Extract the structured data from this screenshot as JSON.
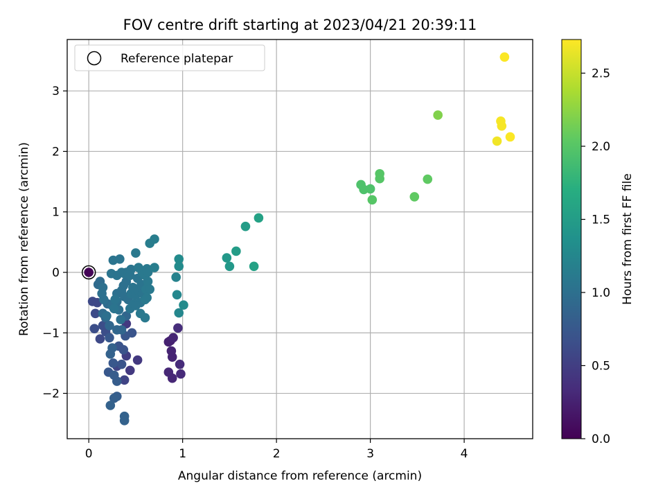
{
  "chart_data": {
    "type": "scatter",
    "title": "FOV centre drift starting at 2023/04/21 20:39:11",
    "xlabel": "Angular distance from reference (arcmin)",
    "ylabel": "Rotation from reference (arcmin)",
    "xlim": [
      -0.23,
      4.73
    ],
    "ylim": [
      -2.75,
      3.85
    ],
    "xticks": [
      0,
      1,
      2,
      3,
      4
    ],
    "yticks": [
      -2,
      -1,
      0,
      1,
      2,
      3
    ],
    "xtick_labels": [
      "0",
      "1",
      "2",
      "3",
      "4"
    ],
    "ytick_labels": [
      "−2",
      "−1",
      "0",
      "1",
      "2",
      "3"
    ],
    "grid": true,
    "legend": {
      "position": "top-left",
      "entries": [
        "Reference platepar"
      ]
    },
    "reference_point": {
      "x": 0,
      "y": 0
    },
    "colorbar": {
      "label": "Hours from first FF file",
      "min": 0.0,
      "max": 2.73,
      "ticks": [
        0.0,
        0.5,
        1.0,
        1.5,
        2.0,
        2.5
      ],
      "tick_labels": [
        "0.0",
        "0.5",
        "1.0",
        "1.5",
        "2.0",
        "2.5"
      ],
      "colormap": "viridis"
    },
    "points": [
      [
        0.0,
        0.0,
        0.02
      ],
      [
        0.87,
        -1.13,
        0.25
      ],
      [
        0.85,
        -1.15,
        0.25
      ],
      [
        0.88,
        -1.3,
        0.27
      ],
      [
        0.89,
        -1.4,
        0.27
      ],
      [
        0.9,
        -1.08,
        0.28
      ],
      [
        0.85,
        -1.65,
        0.3
      ],
      [
        0.89,
        -1.75,
        0.3
      ],
      [
        0.98,
        -1.68,
        0.32
      ],
      [
        0.97,
        -1.52,
        0.33
      ],
      [
        0.95,
        -0.92,
        0.35
      ],
      [
        0.4,
        -0.85,
        0.45
      ],
      [
        0.44,
        -1.62,
        0.45
      ],
      [
        0.52,
        -1.45,
        0.45
      ],
      [
        0.4,
        -1.38,
        0.5
      ],
      [
        0.3,
        -1.55,
        0.55
      ],
      [
        0.38,
        -1.78,
        0.55
      ],
      [
        0.12,
        -1.1,
        0.6
      ],
      [
        0.04,
        -0.48,
        0.6
      ],
      [
        0.09,
        -0.5,
        0.6
      ],
      [
        0.07,
        -0.68,
        0.62
      ],
      [
        0.18,
        -0.98,
        0.65
      ],
      [
        0.15,
        -0.88,
        0.65
      ],
      [
        0.06,
        -0.93,
        0.65
      ],
      [
        0.35,
        -1.52,
        0.7
      ],
      [
        0.32,
        -1.22,
        0.7
      ],
      [
        0.37,
        -1.28,
        0.7
      ],
      [
        0.46,
        -1.0,
        0.7
      ],
      [
        0.39,
        -1.05,
        0.72
      ],
      [
        0.26,
        -1.5,
        0.75
      ],
      [
        0.22,
        -1.08,
        0.75
      ],
      [
        0.21,
        -1.65,
        0.75
      ],
      [
        0.27,
        -1.7,
        0.8
      ],
      [
        0.3,
        -1.8,
        0.8
      ],
      [
        0.3,
        -2.05,
        0.8
      ],
      [
        0.27,
        -2.08,
        0.82
      ],
      [
        0.23,
        -2.2,
        0.85
      ],
      [
        0.38,
        -2.38,
        0.85
      ],
      [
        0.38,
        -2.45,
        0.85
      ],
      [
        0.23,
        -1.35,
        0.85
      ],
      [
        0.25,
        -1.25,
        0.85
      ],
      [
        0.3,
        -0.95,
        0.9
      ],
      [
        0.35,
        -0.95,
        0.9
      ],
      [
        0.4,
        -0.72,
        0.9
      ],
      [
        0.22,
        -0.88,
        0.9
      ],
      [
        0.18,
        -0.75,
        0.9
      ],
      [
        0.15,
        -0.68,
        0.95
      ],
      [
        0.2,
        -0.52,
        0.95
      ],
      [
        0.1,
        -0.2,
        0.95
      ],
      [
        0.12,
        -0.15,
        0.95
      ],
      [
        0.15,
        -0.25,
        1.0
      ],
      [
        0.14,
        -0.35,
        1.0
      ],
      [
        0.16,
        -0.45,
        1.0
      ],
      [
        0.25,
        -0.55,
        1.0
      ],
      [
        0.3,
        -0.48,
        1.0
      ],
      [
        0.3,
        -0.35,
        1.0
      ],
      [
        0.32,
        -0.62,
        1.0
      ],
      [
        0.35,
        -0.3,
        1.0
      ],
      [
        0.37,
        -0.22,
        1.0
      ],
      [
        0.38,
        -0.4,
        1.0
      ],
      [
        0.4,
        -0.15,
        1.0
      ],
      [
        0.42,
        -0.45,
        1.0
      ],
      [
        0.44,
        -0.6,
        1.05
      ],
      [
        0.45,
        -0.35,
        1.05
      ],
      [
        0.47,
        -0.25,
        1.05
      ],
      [
        0.48,
        -0.52,
        1.05
      ],
      [
        0.5,
        -0.38,
        1.05
      ],
      [
        0.52,
        -0.1,
        1.05
      ],
      [
        0.53,
        -0.3,
        1.05
      ],
      [
        0.55,
        -0.5,
        1.05
      ],
      [
        0.56,
        -0.2,
        1.05
      ],
      [
        0.57,
        -0.35,
        1.05
      ],
      [
        0.6,
        -0.45,
        1.1
      ],
      [
        0.61,
        -0.28,
        1.1
      ],
      [
        0.63,
        -0.15,
        1.1
      ],
      [
        0.65,
        -0.28,
        1.1
      ],
      [
        0.6,
        -0.05,
        1.1
      ],
      [
        0.57,
        0.0,
        1.1
      ],
      [
        0.55,
        -0.68,
        1.1
      ],
      [
        0.6,
        -0.75,
        1.1
      ],
      [
        0.62,
        -0.42,
        1.1
      ],
      [
        0.24,
        -0.02,
        1.05
      ],
      [
        0.3,
        -0.05,
        1.05
      ],
      [
        0.35,
        0.0,
        1.05
      ],
      [
        0.38,
        -0.02,
        1.05
      ],
      [
        0.4,
        0.0,
        1.05
      ],
      [
        0.42,
        -0.02,
        1.05
      ],
      [
        0.44,
        -0.05,
        1.05
      ],
      [
        0.45,
        0.05,
        1.05
      ],
      [
        0.33,
        0.22,
        1.05
      ],
      [
        0.26,
        0.2,
        1.05
      ],
      [
        0.5,
        0.32,
        1.1
      ],
      [
        0.53,
        0.08,
        1.1
      ],
      [
        0.6,
        0.03,
        1.1
      ],
      [
        0.62,
        0.06,
        1.1
      ],
      [
        0.63,
        0.0,
        1.1
      ],
      [
        0.65,
        0.48,
        1.15
      ],
      [
        0.7,
        0.55,
        1.15
      ],
      [
        0.7,
        0.08,
        1.15
      ],
      [
        0.28,
        -0.45,
        1.05
      ],
      [
        0.27,
        -0.6,
        1.05
      ],
      [
        0.19,
        -0.72,
        1.0
      ],
      [
        0.34,
        -0.78,
        1.0
      ],
      [
        0.5,
        -0.55,
        1.05
      ],
      [
        0.93,
        -0.08,
        1.2
      ],
      [
        0.94,
        -0.37,
        1.25
      ],
      [
        0.96,
        -0.67,
        1.25
      ],
      [
        1.01,
        -0.54,
        1.3
      ],
      [
        0.96,
        0.22,
        1.3
      ],
      [
        0.96,
        0.1,
        1.3
      ],
      [
        1.47,
        0.24,
        1.45
      ],
      [
        1.5,
        0.1,
        1.45
      ],
      [
        1.57,
        0.35,
        1.5
      ],
      [
        1.67,
        0.76,
        1.5
      ],
      [
        1.76,
        0.1,
        1.55
      ],
      [
        1.81,
        0.9,
        1.55
      ],
      [
        2.9,
        1.45,
        1.95
      ],
      [
        2.93,
        1.37,
        1.95
      ],
      [
        3.0,
        1.38,
        1.95
      ],
      [
        3.02,
        1.2,
        2.0
      ],
      [
        3.1,
        1.55,
        2.0
      ],
      [
        3.1,
        1.63,
        2.0
      ],
      [
        3.47,
        1.25,
        2.05
      ],
      [
        3.61,
        1.54,
        2.05
      ],
      [
        3.72,
        2.6,
        2.2
      ],
      [
        4.35,
        2.17,
        2.68
      ],
      [
        4.39,
        2.5,
        2.7
      ],
      [
        4.4,
        2.42,
        2.7
      ],
      [
        4.43,
        3.56,
        2.72
      ],
      [
        4.49,
        2.24,
        2.72
      ]
    ]
  }
}
